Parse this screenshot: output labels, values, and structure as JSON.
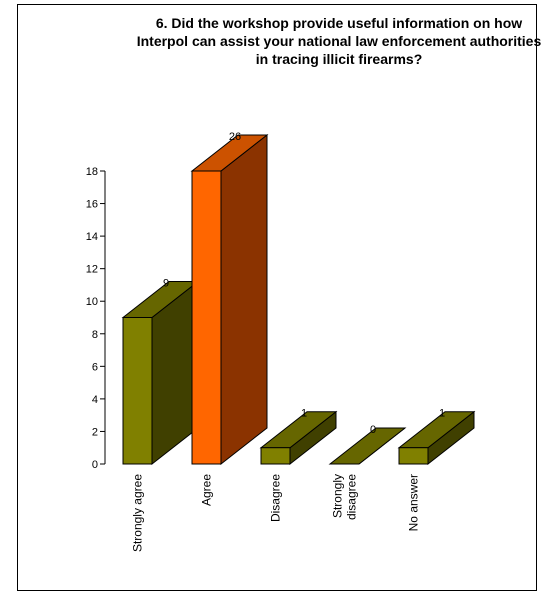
{
  "chart_data": {
    "type": "bar",
    "title": "6. Did the workshop provide useful information on how Interpol can assist your national law enforcement authorities in tracing illicit firearms?",
    "categories": [
      {
        "label_lines": [
          "Strongly agree"
        ]
      },
      {
        "label_lines": [
          "Agree"
        ]
      },
      {
        "label_lines": [
          "Disagree"
        ]
      },
      {
        "label_lines": [
          "Strongly",
          "disagree"
        ]
      },
      {
        "label_lines": [
          "No answer"
        ]
      }
    ],
    "values": [
      9,
      26,
      1,
      0,
      1
    ],
    "data_labels": [
      "9",
      "26",
      "1",
      "0",
      "1"
    ],
    "ylim": [
      0,
      18
    ],
    "yticks": [
      "0",
      "2",
      "4",
      "6",
      "8",
      "10",
      "12",
      "14",
      "16",
      "18"
    ],
    "colors": [
      {
        "front": "#808000",
        "side": "#404000",
        "top": "#666600"
      },
      {
        "front": "#ff6600",
        "side": "#8b3300",
        "top": "#cc5200"
      },
      {
        "front": "#808000",
        "side": "#404000",
        "top": "#666600"
      },
      {
        "front": "#808000",
        "side": "#404000",
        "top": "#666600"
      },
      {
        "front": "#808000",
        "side": "#404000",
        "top": "#666600"
      }
    ]
  }
}
